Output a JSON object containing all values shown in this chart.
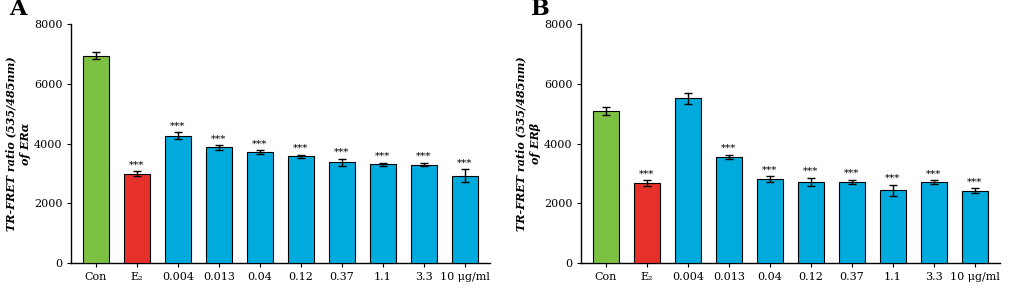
{
  "panel_A": {
    "title": "A",
    "categories": [
      "Con",
      "E₂",
      "0.004",
      "0.013",
      "0.04",
      "0.12",
      "0.37",
      "1.1",
      "3.3",
      "10 μg/ml"
    ],
    "values": [
      6950,
      3000,
      4270,
      3880,
      3720,
      3580,
      3380,
      3310,
      3300,
      2930
    ],
    "errors": [
      120,
      80,
      120,
      80,
      60,
      60,
      120,
      60,
      60,
      220
    ],
    "colors": [
      "#7dc142",
      "#e6302a",
      "#00aadd",
      "#00aadd",
      "#00aadd",
      "#00aadd",
      "#00aadd",
      "#00aadd",
      "#00aadd",
      "#00aadd"
    ],
    "ylabel": "TR-FRET ratio (535/485nm)\nof ERα",
    "ylim": [
      0,
      8000
    ],
    "yticks": [
      0,
      2000,
      4000,
      6000,
      8000
    ],
    "sig_indices": [
      1,
      2,
      3,
      4,
      5,
      6,
      7,
      8,
      9
    ]
  },
  "panel_B": {
    "title": "B",
    "categories": [
      "Con",
      "E₂",
      "0.004",
      "0.013",
      "0.04",
      "0.12",
      "0.37",
      "1.1",
      "3.3",
      "10 μg/ml"
    ],
    "values": [
      5100,
      2680,
      5530,
      3560,
      2820,
      2720,
      2720,
      2440,
      2720,
      2430
    ],
    "errors": [
      150,
      100,
      180,
      80,
      100,
      150,
      80,
      180,
      60,
      80
    ],
    "colors": [
      "#7dc142",
      "#e6302a",
      "#00aadd",
      "#00aadd",
      "#00aadd",
      "#00aadd",
      "#00aadd",
      "#00aadd",
      "#00aadd",
      "#00aadd"
    ],
    "ylabel": "TR-FRET ratio (535/485nm)\nof ERβ",
    "ylim": [
      0,
      8000
    ],
    "yticks": [
      0,
      2000,
      4000,
      6000,
      8000
    ],
    "sig_indices": [
      1,
      3,
      4,
      5,
      6,
      7,
      8,
      9
    ]
  },
  "bg_color": "#ffffff",
  "bar_edge_color": "#000000",
  "bar_width": 0.65,
  "capsize": 3,
  "sig_fontsize": 7.5,
  "label_fontsize": 8,
  "title_fontsize": 16,
  "tick_fontsize": 8
}
